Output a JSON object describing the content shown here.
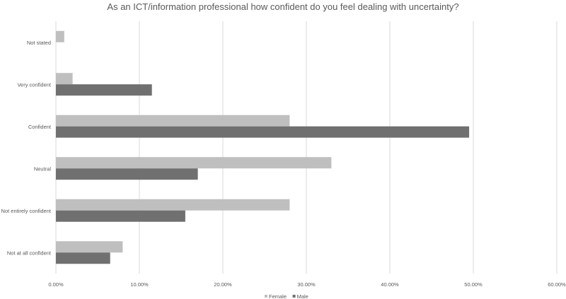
{
  "chart_data": {
    "type": "bar",
    "orientation": "horizontal",
    "title": "As an ICT/information professional how confident do you feel dealing with uncertainty?",
    "categories": [
      "Not stated",
      "Very confident",
      "Confident",
      "Neutral",
      "Not entirely confident",
      "Not at all confident"
    ],
    "series": [
      {
        "name": "Female",
        "color": "#bfbfbf",
        "values": [
          1.0,
          2.0,
          28.0,
          33.0,
          28.0,
          8.0
        ]
      },
      {
        "name": "Male",
        "color": "#707070",
        "values": [
          0,
          11.5,
          49.5,
          17.0,
          15.5,
          6.5
        ]
      }
    ],
    "xlim": [
      0,
      60
    ],
    "xticks": [
      "0.00%",
      "10.00%",
      "20.00%",
      "30.00%",
      "40.00%",
      "50.00%",
      "60.00%"
    ],
    "grid": "vertical",
    "legend_position": "bottom"
  }
}
